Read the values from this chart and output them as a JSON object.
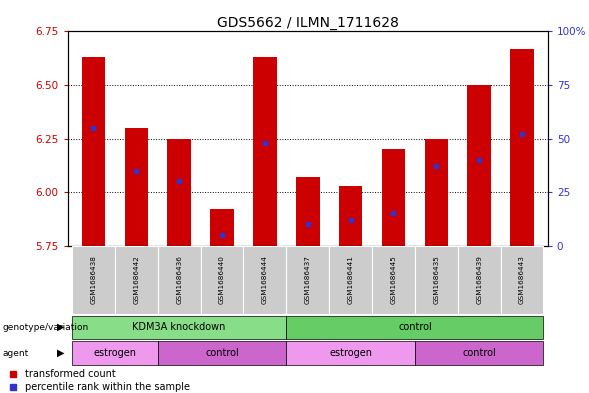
{
  "title": "GDS5662 / ILMN_1711628",
  "samples": [
    "GSM1686438",
    "GSM1686442",
    "GSM1686436",
    "GSM1686440",
    "GSM1686444",
    "GSM1686437",
    "GSM1686441",
    "GSM1686445",
    "GSM1686435",
    "GSM1686439",
    "GSM1686443"
  ],
  "transformed_counts": [
    6.63,
    6.3,
    6.25,
    5.92,
    6.63,
    6.07,
    6.03,
    6.2,
    6.25,
    6.5,
    6.67
  ],
  "percentile_ranks": [
    55,
    35,
    30,
    5,
    48,
    10,
    12,
    15,
    37,
    40,
    52
  ],
  "ylim_left": [
    5.75,
    6.75
  ],
  "ylim_right": [
    0,
    100
  ],
  "yticks_left": [
    5.75,
    6.0,
    6.25,
    6.5,
    6.75
  ],
  "yticks_right": [
    0,
    25,
    50,
    75,
    100
  ],
  "bar_color": "#CC0000",
  "dot_color": "#3333CC",
  "bar_bottom": 5.75,
  "groups": [
    {
      "label": "KDM3A knockdown",
      "start": 0,
      "end": 5,
      "color": "#88DD88"
    },
    {
      "label": "control",
      "start": 5,
      "end": 11,
      "color": "#66CC66"
    }
  ],
  "agents": [
    {
      "label": "estrogen",
      "start": 0,
      "end": 2,
      "color": "#EE99EE"
    },
    {
      "label": "control",
      "start": 2,
      "end": 5,
      "color": "#CC66CC"
    },
    {
      "label": "estrogen",
      "start": 5,
      "end": 8,
      "color": "#EE99EE"
    },
    {
      "label": "control",
      "start": 8,
      "end": 11,
      "color": "#CC66CC"
    }
  ],
  "legend_items": [
    {
      "label": "transformed count",
      "color": "#CC0000"
    },
    {
      "label": "percentile rank within the sample",
      "color": "#3333CC"
    }
  ],
  "tick_label_color_left": "#CC0000",
  "tick_label_color_right": "#3333CC"
}
